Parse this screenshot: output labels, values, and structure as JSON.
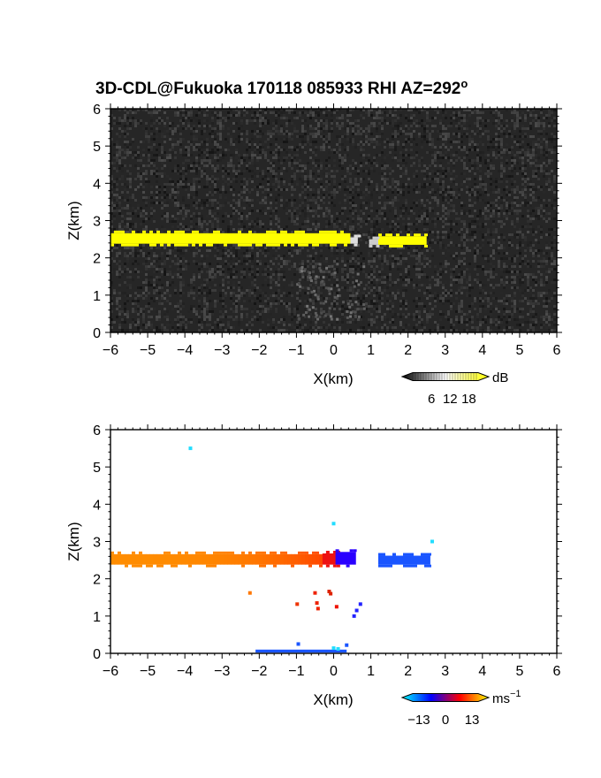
{
  "title": "3D-CDL@Fukuoka 170118 085933 RHI AZ=292",
  "title_sup": "o",
  "chart_data": [
    {
      "type": "heatmap",
      "quantity": "intensity",
      "xlabel": "X(km)",
      "ylabel": "Z(km)",
      "xlim": [
        -6,
        6
      ],
      "ylim": [
        0,
        6
      ],
      "xticks": [
        -6,
        -5,
        -4,
        -3,
        -2,
        -1,
        0,
        1,
        2,
        3,
        4,
        5,
        6
      ],
      "yticks": [
        0,
        1,
        2,
        3,
        4,
        5,
        6
      ],
      "background": "noisy dark grey field",
      "colorbar": {
        "unit": "dB",
        "ticks": [
          "6",
          "12",
          "18"
        ],
        "range": [
          0,
          21
        ],
        "colors": [
          "#000000",
          "#ffffff",
          "#ffff00"
        ]
      },
      "echoes": [
        {
          "x0": -6.0,
          "x1": 0.45,
          "z0": 2.38,
          "z1": 2.66,
          "value_db": 20,
          "color": "#ffff00"
        },
        {
          "x0": 0.45,
          "x1": 0.65,
          "z0": 2.38,
          "z1": 2.55,
          "value_db": 14,
          "color": "#dddddd"
        },
        {
          "x0": 1.2,
          "x1": 2.5,
          "z0": 2.35,
          "z1": 2.58,
          "value_db": 20,
          "color": "#ffff00"
        },
        {
          "x0": 0.95,
          "x1": 1.2,
          "z0": 2.35,
          "z1": 2.5,
          "value_db": 12,
          "color": "#cccccc"
        }
      ]
    },
    {
      "type": "heatmap",
      "quantity": "doppler velocity",
      "xlabel": "X(km)",
      "ylabel": "Z(km)",
      "xlim": [
        -6,
        6
      ],
      "ylim": [
        0,
        6
      ],
      "xticks": [
        -6,
        -5,
        -4,
        -3,
        -2,
        -1,
        0,
        1,
        2,
        3,
        4,
        5,
        6
      ],
      "yticks": [
        0,
        1,
        2,
        3,
        4,
        5,
        6
      ],
      "background": "white",
      "colorbar": {
        "unit": "ms",
        "unit_sup": "−1",
        "ticks": [
          "−13",
          "0",
          "13"
        ],
        "range": [
          -16,
          16
        ],
        "colors": [
          "#00ffff",
          "#0000ff",
          "#ff0000",
          "#ffff00"
        ]
      },
      "band_left": {
        "x0": -6.0,
        "x1": -0.3,
        "z0": 2.38,
        "z1": 2.66,
        "color_start": "#ff8c00",
        "color_end": "#ff4500"
      },
      "band_mid": {
        "x0": -0.3,
        "x1": 0.1,
        "z0": 2.38,
        "z1": 2.68,
        "color": "#ee1111"
      },
      "band_dark": {
        "x0": 0.05,
        "x1": 0.6,
        "z0": 2.38,
        "z1": 2.72,
        "color": "#2a00ff"
      },
      "band_right": {
        "x0": 1.2,
        "x1": 2.6,
        "z0": 2.38,
        "z1": 2.62,
        "color": "#1a55ff"
      },
      "points": [
        {
          "x": -3.85,
          "z": 5.5,
          "color": "#22ddff"
        },
        {
          "x": 0.0,
          "z": 3.48,
          "color": "#22ddff"
        },
        {
          "x": 2.65,
          "z": 3.0,
          "color": "#22ddff"
        },
        {
          "x": -2.25,
          "z": 1.62,
          "color": "#ff7700"
        },
        {
          "x": -0.5,
          "z": 1.62,
          "color": "#ee2200"
        },
        {
          "x": -0.12,
          "z": 1.66,
          "color": "#dd2200"
        },
        {
          "x": -0.08,
          "z": 1.6,
          "color": "#dd2200"
        },
        {
          "x": -0.98,
          "z": 1.32,
          "color": "#ee3300"
        },
        {
          "x": -0.45,
          "z": 1.35,
          "color": "#ee2200"
        },
        {
          "x": -0.42,
          "z": 1.2,
          "color": "#ee2200"
        },
        {
          "x": 0.08,
          "z": 1.25,
          "color": "#ee1100"
        },
        {
          "x": 0.72,
          "z": 1.32,
          "color": "#2222ff"
        },
        {
          "x": 0.62,
          "z": 1.15,
          "color": "#2222ff"
        },
        {
          "x": 0.55,
          "z": 1.0,
          "color": "#2222ff"
        },
        {
          "x": -0.95,
          "z": 0.25,
          "color": "#1a55ff"
        },
        {
          "x": 0.35,
          "z": 0.22,
          "color": "#1a55ff"
        },
        {
          "x": 0.0,
          "z": 0.14,
          "color": "#22ddff"
        },
        {
          "x": 0.12,
          "z": 0.12,
          "color": "#22ddff"
        }
      ],
      "ground_clutter": {
        "x0": -2.1,
        "x1": 0.35,
        "z0": 0.02,
        "z1": 0.1,
        "color": "#1a55ff"
      }
    }
  ]
}
